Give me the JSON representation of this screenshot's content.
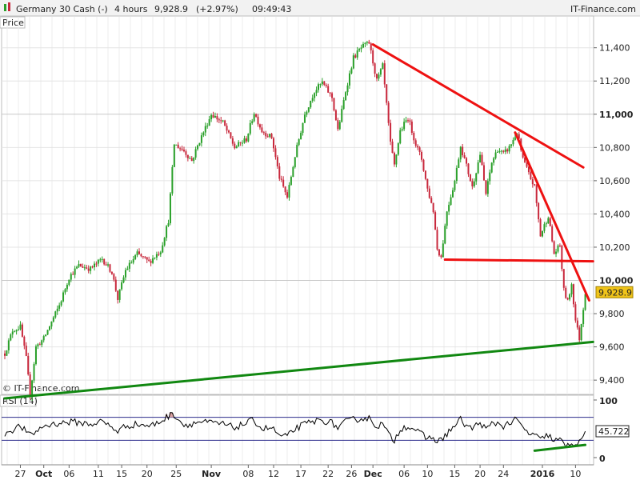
{
  "header": {
    "instrument": "Germany 30 Cash (-)",
    "timeframe": "4 hours",
    "last_price": "9,928.9",
    "change": "(+2.97%)",
    "time": "09:49:43",
    "brand": "IT-Finance.com"
  },
  "price_panel": {
    "label": "Price",
    "watermark": "© IT-Finance.com"
  },
  "rsi_panel": {
    "label": "RSI (14)",
    "value_label": "45.722"
  },
  "colors": {
    "up": "#2aa02a",
    "down": "#c8283c",
    "trend_red": "#ee1111",
    "trend_green": "#118811",
    "price_badge": "#f0c419",
    "rsi_line": "#000000",
    "rsi_band": "#2b2b8c"
  },
  "chart_data": {
    "type": "candlestick",
    "y_axis": {
      "ticks": [
        {
          "value": 9400,
          "label": "9,400"
        },
        {
          "value": 9600,
          "label": "9,600"
        },
        {
          "value": 9800,
          "label": "9,800"
        },
        {
          "value": 10000,
          "label": "10,000",
          "bold": true
        },
        {
          "value": 10200,
          "label": "10,200"
        },
        {
          "value": 10400,
          "label": "10,400"
        },
        {
          "value": 10600,
          "label": "10,600"
        },
        {
          "value": 10800,
          "label": "10,800"
        },
        {
          "value": 11000,
          "label": "11,000",
          "bold": true
        },
        {
          "value": 11200,
          "label": "11,200"
        },
        {
          "value": 11400,
          "label": "11,400"
        }
      ],
      "range": [
        9290,
        11490
      ]
    },
    "x_axis": {
      "labels": [
        {
          "label": "27",
          "bar": 8,
          "bold": false
        },
        {
          "label": "Oct",
          "bar": 20,
          "bold": true
        },
        {
          "label": "06",
          "bar": 33,
          "bold": false
        },
        {
          "label": "11",
          "bar": 48,
          "bold": false
        },
        {
          "label": "15",
          "bar": 60,
          "bold": false
        },
        {
          "label": "20",
          "bar": 73,
          "bold": false
        },
        {
          "label": "25",
          "bar": 88,
          "bold": false
        },
        {
          "label": "Nov",
          "bar": 106,
          "bold": true
        },
        {
          "label": "08",
          "bar": 125,
          "bold": false
        },
        {
          "label": "12",
          "bar": 138,
          "bold": false
        },
        {
          "label": "17",
          "bar": 152,
          "bold": false
        },
        {
          "label": "22",
          "bar": 166,
          "bold": false
        },
        {
          "label": "26",
          "bar": 178,
          "bold": false
        },
        {
          "label": "Dec",
          "bar": 189,
          "bold": true
        },
        {
          "label": "06",
          "bar": 205,
          "bold": false
        },
        {
          "label": "10",
          "bar": 217,
          "bold": false
        },
        {
          "label": "15",
          "bar": 231,
          "bold": false
        },
        {
          "label": "20",
          "bar": 244,
          "bold": false
        },
        {
          "label": "24",
          "bar": 256,
          "bold": false
        },
        {
          "label": "2016",
          "bar": 276,
          "bold": true
        },
        {
          "label": "10",
          "bar": 293,
          "bold": false
        }
      ]
    },
    "anchors": [
      [
        0,
        9560
      ],
      [
        4,
        9700
      ],
      [
        8,
        9720
      ],
      [
        11,
        9530
      ],
      [
        13,
        9310
      ],
      [
        16,
        9600
      ],
      [
        20,
        9650
      ],
      [
        28,
        9850
      ],
      [
        33,
        10020
      ],
      [
        38,
        10090
      ],
      [
        44,
        10070
      ],
      [
        50,
        10130
      ],
      [
        55,
        10050
      ],
      [
        58,
        9890
      ],
      [
        62,
        10060
      ],
      [
        68,
        10160
      ],
      [
        74,
        10110
      ],
      [
        80,
        10180
      ],
      [
        84,
        10360
      ],
      [
        87,
        10820
      ],
      [
        92,
        10780
      ],
      [
        96,
        10720
      ],
      [
        100,
        10840
      ],
      [
        106,
        11000
      ],
      [
        112,
        10950
      ],
      [
        118,
        10800
      ],
      [
        124,
        10850
      ],
      [
        128,
        11010
      ],
      [
        132,
        10900
      ],
      [
        137,
        10860
      ],
      [
        141,
        10620
      ],
      [
        145,
        10500
      ],
      [
        149,
        10750
      ],
      [
        154,
        11000
      ],
      [
        159,
        11140
      ],
      [
        163,
        11190
      ],
      [
        168,
        11100
      ],
      [
        171,
        10900
      ],
      [
        175,
        11140
      ],
      [
        179,
        11340
      ],
      [
        183,
        11400
      ],
      [
        187,
        11430
      ],
      [
        191,
        11200
      ],
      [
        194,
        11290
      ],
      [
        198,
        10820
      ],
      [
        200,
        10690
      ],
      [
        203,
        10900
      ],
      [
        207,
        10980
      ],
      [
        211,
        10820
      ],
      [
        214,
        10730
      ],
      [
        217,
        10550
      ],
      [
        220,
        10420
      ],
      [
        222,
        10190
      ],
      [
        224,
        10140
      ],
      [
        227,
        10420
      ],
      [
        231,
        10600
      ],
      [
        234,
        10810
      ],
      [
        237,
        10690
      ],
      [
        240,
        10560
      ],
      [
        244,
        10760
      ],
      [
        247,
        10520
      ],
      [
        250,
        10710
      ],
      [
        253,
        10790
      ],
      [
        256,
        10760
      ],
      [
        259,
        10800
      ],
      [
        263,
        10890
      ],
      [
        266,
        10730
      ],
      [
        269,
        10640
      ],
      [
        272,
        10560
      ],
      [
        275,
        10270
      ],
      [
        279,
        10390
      ],
      [
        282,
        10160
      ],
      [
        285,
        10210
      ],
      [
        287,
        9940
      ],
      [
        289,
        9870
      ],
      [
        291,
        9980
      ],
      [
        293,
        9760
      ],
      [
        295,
        9650
      ],
      [
        298,
        9929
      ]
    ],
    "rsi": {
      "ylim": [
        0,
        100
      ],
      "ticks": [
        0,
        100
      ],
      "bands": [
        30,
        70
      ],
      "last": 45.722,
      "anchors": [
        [
          0,
          42
        ],
        [
          8,
          55
        ],
        [
          13,
          38
        ],
        [
          20,
          55
        ],
        [
          28,
          60
        ],
        [
          35,
          62
        ],
        [
          44,
          58
        ],
        [
          50,
          63
        ],
        [
          58,
          46
        ],
        [
          62,
          55
        ],
        [
          68,
          58
        ],
        [
          75,
          55
        ],
        [
          80,
          63
        ],
        [
          84,
          72
        ],
        [
          86,
          75
        ],
        [
          88,
          72
        ],
        [
          92,
          56
        ],
        [
          100,
          62
        ],
        [
          106,
          60
        ],
        [
          112,
          58
        ],
        [
          118,
          52
        ],
        [
          124,
          60
        ],
        [
          128,
          65
        ],
        [
          132,
          50
        ],
        [
          137,
          52
        ],
        [
          141,
          38
        ],
        [
          145,
          36
        ],
        [
          149,
          50
        ],
        [
          154,
          58
        ],
        [
          159,
          63
        ],
        [
          163,
          65
        ],
        [
          168,
          60
        ],
        [
          171,
          52
        ],
        [
          175,
          62
        ],
        [
          179,
          66
        ],
        [
          183,
          68
        ],
        [
          187,
          68
        ],
        [
          191,
          55
        ],
        [
          194,
          58
        ],
        [
          198,
          35
        ],
        [
          200,
          30
        ],
        [
          203,
          50
        ],
        [
          207,
          55
        ],
        [
          211,
          48
        ],
        [
          214,
          40
        ],
        [
          217,
          33
        ],
        [
          220,
          35
        ],
        [
          222,
          28
        ],
        [
          224,
          30
        ],
        [
          227,
          42
        ],
        [
          231,
          55
        ],
        [
          234,
          66
        ],
        [
          237,
          55
        ],
        [
          240,
          50
        ],
        [
          244,
          62
        ],
        [
          247,
          48
        ],
        [
          250,
          58
        ],
        [
          253,
          60
        ],
        [
          256,
          55
        ],
        [
          259,
          60
        ],
        [
          263,
          66
        ],
        [
          266,
          50
        ],
        [
          269,
          42
        ],
        [
          272,
          40
        ],
        [
          275,
          30
        ],
        [
          279,
          40
        ],
        [
          282,
          28
        ],
        [
          285,
          32
        ],
        [
          287,
          22
        ],
        [
          289,
          20
        ],
        [
          291,
          27
        ],
        [
          293,
          24
        ],
        [
          295,
          25
        ],
        [
          298,
          45.722
        ]
      ]
    },
    "trendlines": [
      {
        "color": "trend_red",
        "from": [
          189,
          11420
        ],
        "to": [
          297,
          10680
        ]
      },
      {
        "color": "trend_red",
        "from": [
          262,
          10890
        ],
        "to": [
          300,
          9880
        ]
      },
      {
        "color": "trend_red",
        "from": [
          226,
          10125
        ],
        "to": [
          302,
          10115
        ]
      },
      {
        "color": "trend_green",
        "from": [
          0,
          9290
        ],
        "to": [
          302,
          9630
        ]
      }
    ],
    "rsi_trendlines": [
      {
        "color": "trend_green",
        "from": [
          272,
          12
        ],
        "to": [
          298,
          22
        ]
      }
    ]
  }
}
